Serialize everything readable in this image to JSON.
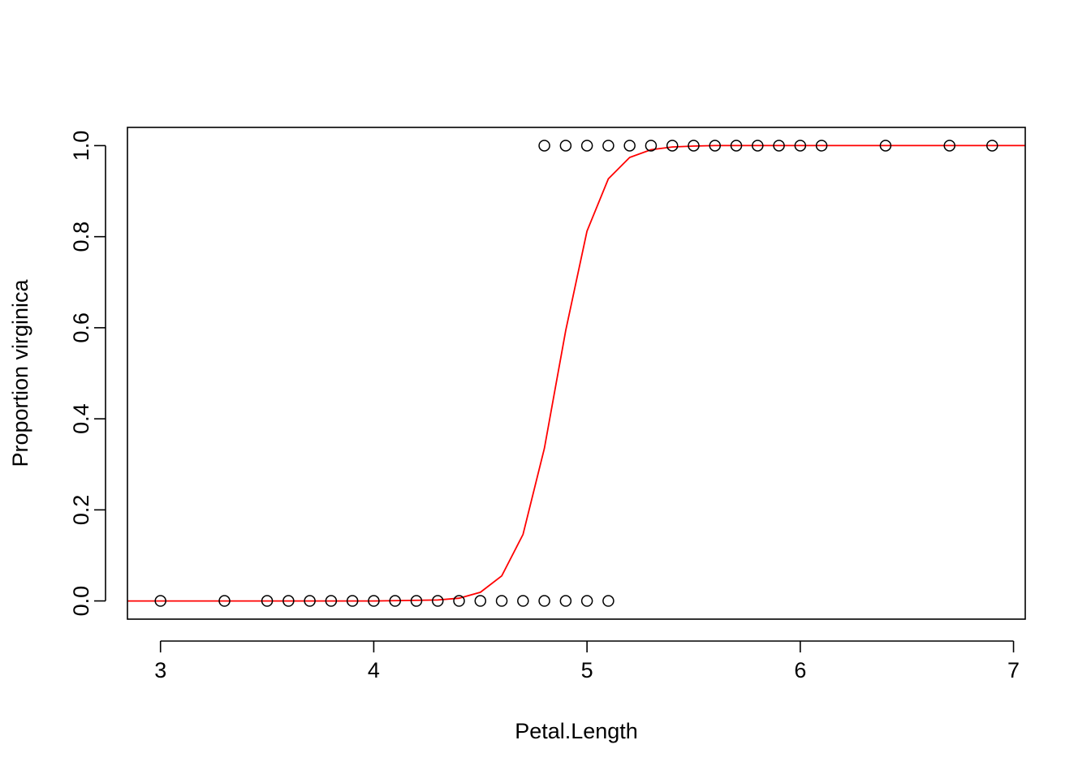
{
  "chart_data": {
    "type": "scatter",
    "title": "",
    "xlabel": "Petal.Length",
    "ylabel": "Proportion virginica",
    "xlim": [
      2.845,
      7.055
    ],
    "ylim": [
      -0.04,
      1.04
    ],
    "x_ticks": [
      3,
      4,
      5,
      6,
      7
    ],
    "y_ticks": [
      0.0,
      0.2,
      0.4,
      0.6,
      0.8,
      1.0
    ],
    "x_tick_labels": [
      "3",
      "4",
      "5",
      "6",
      "7"
    ],
    "y_tick_labels": [
      "0.0",
      "0.2",
      "0.4",
      "0.6",
      "0.8",
      "1.0"
    ],
    "grid": false,
    "colors": {
      "points": "#000000",
      "curve": "#ff0000",
      "axes": "#000000"
    },
    "points": {
      "x": [
        3.0,
        3.3,
        3.5,
        3.6,
        3.7,
        3.8,
        3.9,
        4.0,
        4.1,
        4.2,
        4.3,
        4.4,
        4.5,
        4.6,
        4.7,
        4.8,
        4.9,
        5.0,
        5.1,
        4.8,
        4.9,
        5.0,
        5.1,
        5.2,
        5.3,
        5.4,
        5.5,
        5.6,
        5.7,
        5.8,
        5.9,
        6.0,
        6.1,
        6.4,
        6.7,
        6.9
      ],
      "y": [
        0,
        0,
        0,
        0,
        0,
        0,
        0,
        0,
        0,
        0,
        0,
        0,
        0,
        0,
        0,
        0,
        0,
        0,
        0,
        1,
        1,
        1,
        1,
        1,
        1,
        1,
        1,
        1,
        1,
        1,
        1,
        1,
        1,
        1,
        1,
        1
      ]
    },
    "curve": {
      "name": "",
      "x": [
        2.845,
        3.0,
        3.5,
        4.0,
        4.3,
        4.4,
        4.5,
        4.6,
        4.7,
        4.8,
        4.9,
        5.0,
        5.1,
        5.2,
        5.3,
        5.4,
        5.5,
        5.6,
        6.0,
        7.055
      ],
      "y": [
        0.0,
        0.0,
        0.0,
        0.0,
        0.002,
        0.006,
        0.019,
        0.055,
        0.146,
        0.335,
        0.594,
        0.812,
        0.927,
        0.974,
        0.991,
        0.997,
        0.999,
        1.0,
        1.0,
        1.0
      ]
    }
  }
}
